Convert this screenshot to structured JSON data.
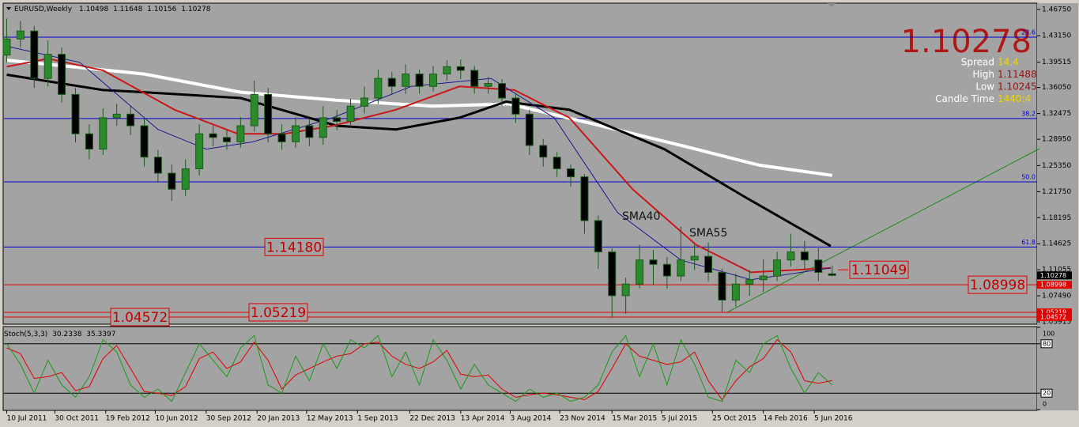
{
  "chart_data": {
    "type": "candlestick",
    "symbol": "EURUSD,Weekly",
    "bull_color": "#2b8a2b",
    "bear_color": "#000000",
    "wick_color": "#1a5c1a",
    "ohlc": {
      "open": [
        1.405,
        1.427,
        1.438,
        1.373,
        1.406,
        1.351,
        1.297,
        1.276,
        1.319,
        1.324,
        1.308,
        1.265,
        1.243,
        1.221,
        1.249,
        1.297,
        1.292,
        1.286,
        1.308,
        1.351,
        1.297,
        1.286,
        1.308,
        1.292,
        1.319,
        1.314,
        1.335,
        1.346,
        1.373,
        1.362,
        1.379,
        1.362,
        1.379,
        1.389,
        1.384,
        1.362,
        1.366,
        1.346,
        1.324,
        1.281,
        1.265,
        1.249,
        1.238,
        1.178,
        1.135,
        1.075,
        1.091,
        1.124,
        1.118,
        1.102,
        1.124,
        1.129,
        1.107,
        1.069,
        1.091,
        1.097,
        1.102,
        1.124,
        1.135,
        1.124,
        1.10498
      ],
      "high": [
        1.455,
        1.452,
        1.445,
        1.425,
        1.415,
        1.36,
        1.31,
        1.332,
        1.338,
        1.335,
        1.318,
        1.275,
        1.255,
        1.262,
        1.31,
        1.308,
        1.302,
        1.32,
        1.37,
        1.36,
        1.31,
        1.32,
        1.318,
        1.335,
        1.33,
        1.345,
        1.362,
        1.385,
        1.382,
        1.392,
        1.385,
        1.39,
        1.398,
        1.399,
        1.39,
        1.375,
        1.372,
        1.352,
        1.33,
        1.29,
        1.272,
        1.255,
        1.242,
        1.185,
        1.14,
        1.1,
        1.145,
        1.138,
        1.128,
        1.17,
        1.145,
        1.148,
        1.112,
        1.105,
        1.11,
        1.125,
        1.135,
        1.16,
        1.15,
        1.14,
        1.11648
      ],
      "low": [
        1.395,
        1.415,
        1.36,
        1.362,
        1.34,
        1.285,
        1.262,
        1.268,
        1.308,
        1.295,
        1.252,
        1.23,
        1.205,
        1.212,
        1.24,
        1.28,
        1.275,
        1.278,
        1.3,
        1.285,
        1.275,
        1.278,
        1.28,
        1.282,
        1.302,
        1.305,
        1.325,
        1.338,
        1.35,
        1.352,
        1.352,
        1.355,
        1.37,
        1.372,
        1.352,
        1.352,
        1.335,
        1.312,
        1.268,
        1.252,
        1.238,
        1.225,
        1.16,
        1.112,
        1.046,
        1.05,
        1.085,
        1.09,
        1.085,
        1.095,
        1.11,
        1.095,
        1.052,
        1.06,
        1.075,
        1.08,
        1.095,
        1.115,
        1.11,
        1.095,
        1.10156
      ],
      "close": [
        1.427,
        1.438,
        1.373,
        1.406,
        1.351,
        1.297,
        1.276,
        1.319,
        1.324,
        1.308,
        1.265,
        1.243,
        1.221,
        1.249,
        1.297,
        1.292,
        1.286,
        1.308,
        1.351,
        1.297,
        1.286,
        1.308,
        1.292,
        1.319,
        1.314,
        1.335,
        1.346,
        1.373,
        1.362,
        1.379,
        1.362,
        1.379,
        1.389,
        1.384,
        1.362,
        1.366,
        1.346,
        1.324,
        1.281,
        1.265,
        1.249,
        1.238,
        1.178,
        1.135,
        1.075,
        1.091,
        1.124,
        1.118,
        1.102,
        1.124,
        1.129,
        1.107,
        1.069,
        1.091,
        1.097,
        1.102,
        1.124,
        1.135,
        1.124,
        1.107,
        1.10278
      ]
    },
    "xlim": [
      -0.2,
      74.9
    ],
    "ylim": [
      1.037,
      1.4718
    ],
    "yticks": [
      {
        "value": 1.4675,
        "label": "1.46750"
      },
      {
        "value": 1.4315,
        "label": "1.43150"
      },
      1.39515,
      {
        "value": 1.3605,
        "label": "1.36050"
      },
      1.32475,
      {
        "value": 1.2895,
        "label": "1.28950"
      },
      {
        "value": 1.2535,
        "label": "1.25350"
      },
      {
        "value": 1.2175,
        "label": "1.21750"
      },
      1.18195,
      1.14625,
      1.11055,
      {
        "value": 1.0749,
        "label": "1.07490"
      },
      1.03915
    ],
    "xticks": [
      {
        "value": 0,
        "label": "10 Jul 2011"
      },
      {
        "value": 3.5,
        "label": "30 Oct 2011"
      },
      {
        "value": 7.2,
        "label": "19 Feb 2012"
      },
      {
        "value": 10.8,
        "label": "10 Jun 2012"
      },
      {
        "value": 14.5,
        "label": "30 Sep 2012"
      },
      {
        "value": 18.2,
        "label": "20 Jan 2013"
      },
      {
        "value": 21.8,
        "label": "12 May 2013"
      },
      {
        "value": 25.5,
        "label": "1 Sep 2013"
      },
      {
        "value": 29.3,
        "label": "22 Dec 2013"
      },
      {
        "value": 33,
        "label": "13 Apr 2014"
      },
      {
        "value": 36.6,
        "label": "3 Aug 2014"
      },
      {
        "value": 40.2,
        "label": "23 Nov 2014"
      },
      {
        "value": 44,
        "label": "15 Mar 2015"
      },
      {
        "value": 47.6,
        "label": "5 Jul 2015"
      },
      {
        "value": 51.3,
        "label": "25 Oct 2015"
      },
      {
        "value": 55,
        "label": "14 Feb 2016"
      },
      {
        "value": 58.7,
        "label": "5 Jun 2016"
      }
    ],
    "ma_lines": [
      {
        "color": "#ffffff",
        "width": 4,
        "x": [
          0,
          10,
          17,
          24,
          31,
          36.5,
          43.2,
          50.1,
          54.7,
          60
        ],
        "values": [
          1.398,
          1.379,
          1.354,
          1.343,
          1.335,
          1.338,
          1.308,
          1.276,
          1.254,
          1.24
        ]
      },
      {
        "color": "#000000",
        "width": 3,
        "x": [
          0,
          7,
          10,
          17,
          24,
          28.3,
          32.9,
          36.3,
          40.9,
          47.8,
          53.6,
          59.9
        ],
        "values": [
          1.378,
          1.357,
          1.354,
          1.346,
          1.308,
          1.303,
          1.319,
          1.341,
          1.33,
          1.276,
          1.211,
          1.143
        ]
      },
      {
        "color": "#c81818",
        "width": 2,
        "x": [
          0,
          3,
          7,
          12.2,
          16.8,
          20.2,
          23.7,
          28.3,
          32.9,
          36.9,
          40.9,
          45.5,
          50.1,
          54.1,
          59.9
        ],
        "values": [
          1.389,
          1.4,
          1.384,
          1.33,
          1.297,
          1.297,
          1.308,
          1.33,
          1.362,
          1.357,
          1.319,
          1.221,
          1.145,
          1.107,
          1.113
        ]
      },
      {
        "color": "#1a1a8c",
        "width": 1,
        "x": [
          0,
          5.3,
          11,
          14.5,
          17.9,
          23.7,
          29.4,
          35.2,
          39.8,
          44.4,
          49,
          54.1,
          59.9
        ],
        "values": [
          1.417,
          1.395,
          1.303,
          1.276,
          1.286,
          1.319,
          1.362,
          1.373,
          1.319,
          1.189,
          1.124,
          1.097,
          1.113
        ]
      }
    ],
    "fib": {
      "color": "#0000cc",
      "labels": [
        "23.6",
        "38.2",
        "50.0",
        "61.8"
      ],
      "prices": [
        1.4295,
        1.3179,
        1.2311,
        1.1418
      ]
    },
    "price_labels": [
      {
        "price": {
          "value": 1.1418,
          "label": "1.14180"
        },
        "line": false
      },
      {
        "price": 1.11049,
        "line": false
      },
      {
        "price": 1.08998,
        "line": true
      },
      {
        "price": 1.05219,
        "line": true
      },
      {
        "price": 1.04572,
        "line": true
      }
    ],
    "level_color": "#e00000",
    "annotations": [
      "SMA40",
      "SMA55"
    ],
    "info": [
      {
        "label": "Spread",
        "value": 14.4,
        "color": "#e8d800"
      },
      {
        "label": "High",
        "value": 1.11488,
        "color": "#a01010"
      },
      {
        "label": "Low",
        "value": 1.10245,
        "color": "#a01010"
      },
      {
        "label": "Candle Time",
        "value": "1440:4",
        "color": "#e8d800"
      }
    ],
    "stoch": {
      "title": "Stoch(5,3,3)",
      "k_color": "#1a9a1a",
      "d_color": "#e00000",
      "ylim": [
        0,
        100
      ],
      "yticks": [
        0,
        20,
        80,
        100
      ],
      "levels": [
        20,
        80
      ],
      "k": [
        80,
        55,
        20,
        60,
        30,
        15,
        40,
        85,
        70,
        30,
        15,
        25,
        10,
        45,
        80,
        60,
        40,
        75,
        90,
        30,
        20,
        65,
        35,
        80,
        50,
        85,
        75,
        90,
        40,
        70,
        30,
        85,
        60,
        25,
        55,
        30,
        20,
        10,
        25,
        15,
        20,
        10,
        15,
        30,
        70,
        90,
        40,
        80,
        30,
        85,
        55,
        15,
        10,
        60,
        45,
        80,
        90,
        50,
        20,
        45,
        30.2338
      ],
      "d": [
        75,
        68,
        38,
        40,
        45,
        23,
        28,
        62,
        78,
        50,
        22,
        20,
        17,
        28,
        62,
        70,
        50,
        58,
        82,
        60,
        25,
        42,
        50,
        58,
        65,
        68,
        80,
        82,
        65,
        55,
        50,
        58,
        72,
        43,
        40,
        42,
        25,
        15,
        18,
        20,
        18,
        15,
        12,
        22,
        50,
        80,
        65,
        60,
        55,
        58,
        70,
        35,
        12,
        35,
        52,
        62,
        85,
        70,
        35,
        32,
        35.3397
      ]
    }
  }
}
